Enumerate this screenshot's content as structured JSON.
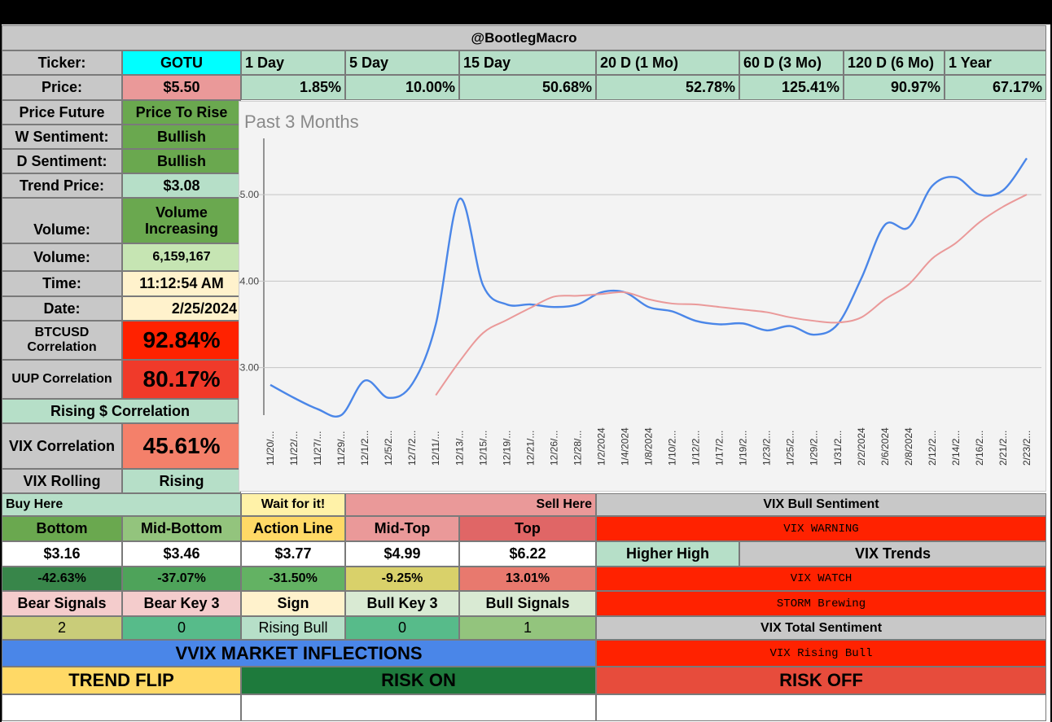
{
  "header": {
    "title": "@BootlegMacro"
  },
  "ticker": {
    "label": "Ticker:",
    "value": "GOTU"
  },
  "price": {
    "label": "Price:",
    "value": "$5.50"
  },
  "periods": [
    {
      "label": "1 Day",
      "change": "1.85%"
    },
    {
      "label": "5 Day",
      "change": "10.00%"
    },
    {
      "label": "15 Day",
      "change": "50.68%"
    },
    {
      "label": "20 D (1 Mo)",
      "change": "52.78%"
    },
    {
      "label": "60 D (3 Mo)",
      "change": "125.41%"
    },
    {
      "label": "120 D (6 Mo)",
      "change": "90.97%"
    },
    {
      "label": "1 Year",
      "change": "67.17%"
    }
  ],
  "metrics": {
    "price_future": {
      "label": "Price Future",
      "value": "Price To Rise"
    },
    "w_sentiment": {
      "label": "W Sentiment:",
      "value": "Bullish"
    },
    "d_sentiment": {
      "label": "D Sentiment:",
      "value": "Bullish"
    },
    "trend_price": {
      "label": "Trend Price:",
      "value": "$3.08"
    },
    "volume_trend": {
      "label": "Volume:",
      "value": "Volume Increasing"
    },
    "volume": {
      "label": "Volume:",
      "value": "6,159,167"
    },
    "time": {
      "label": "Time:",
      "value": "11:12:54 AM"
    },
    "date": {
      "label": "Date:",
      "value": "2/25/2024"
    },
    "btc_corr": {
      "label": "BTCUSD Correlation",
      "value": "92.84%"
    },
    "uup_corr": {
      "label": "UUP Correlation",
      "value": "80.17%"
    },
    "rising_corr": {
      "label": "Rising $ Correlation"
    },
    "vix_corr": {
      "label": "VIX Correlation",
      "value": "45.61%"
    },
    "vix_rolling": {
      "label": "VIX Rolling",
      "value": "Rising"
    }
  },
  "chart_data": {
    "type": "line",
    "title": "Past 3 Months",
    "y_ticks": [
      "$5.00",
      "$4.00",
      "$3.00"
    ],
    "ylim": [
      2.45,
      5.65
    ],
    "categories": [
      "11/20/...",
      "11/22/...",
      "11/27/...",
      "11/29/...",
      "12/1/2...",
      "12/5/2...",
      "12/7/2...",
      "12/11/...",
      "12/13/...",
      "12/15/...",
      "12/19/...",
      "12/21/...",
      "12/26/...",
      "12/28/...",
      "1/2/2024",
      "1/4/2024",
      "1/8/2024",
      "1/10/2...",
      "1/12/2...",
      "1/17/2...",
      "1/19/2...",
      "1/23/2...",
      "1/25/2...",
      "1/29/2...",
      "1/31/2...",
      "2/2/2024",
      "2/6/2024",
      "2/8/2024",
      "2/12/2...",
      "2/14/2...",
      "2/16/2...",
      "2/21/2...",
      "2/23/2..."
    ],
    "series": [
      {
        "color": "#4a86e8",
        "values": [
          2.8,
          2.65,
          2.52,
          2.45,
          2.85,
          2.65,
          2.81,
          3.5,
          4.95,
          3.95,
          3.73,
          3.73,
          3.7,
          3.73,
          3.87,
          3.87,
          3.7,
          3.65,
          3.54,
          3.5,
          3.51,
          3.43,
          3.48,
          3.38,
          3.5,
          4.03,
          4.65,
          4.62,
          5.1,
          5.2,
          5.0,
          5.05,
          5.42
        ]
      },
      {
        "color": "#ea9999",
        "values": [
          null,
          null,
          null,
          null,
          null,
          null,
          null,
          2.68,
          3.07,
          3.4,
          3.55,
          3.69,
          3.82,
          3.83,
          3.85,
          3.87,
          3.79,
          3.74,
          3.73,
          3.7,
          3.67,
          3.64,
          3.58,
          3.54,
          3.52,
          3.58,
          3.79,
          3.96,
          4.26,
          4.44,
          4.68,
          4.86,
          5.0
        ]
      }
    ]
  },
  "levels": {
    "buy_here": "Buy Here",
    "wait": "Wait for it!",
    "sell_here": "Sell Here",
    "headers": [
      "Bottom",
      "Mid-Bottom",
      "Action Line",
      "Mid-Top",
      "Top"
    ],
    "prices": [
      "$3.16",
      "$3.46",
      "$3.77",
      "$4.99",
      "$6.22"
    ],
    "pcts": [
      "-42.63%",
      "-37.07%",
      "-31.50%",
      "-9.25%",
      "13.01%"
    ]
  },
  "signals": {
    "headers": [
      "Bear Signals",
      "Bear Key 3",
      "Sign",
      "Bull Key 3",
      "Bull Signals"
    ],
    "values": [
      "2",
      "0",
      "Rising Bull",
      "0",
      "1"
    ]
  },
  "vix": {
    "bull_sentiment": "VIX Bull Sentiment",
    "warning": "VIX WARNING",
    "higher_high": "Higher High",
    "trends": "VIX Trends",
    "watch": "VIX WATCH",
    "storm": "STORM Brewing",
    "total": "VIX Total Sentiment",
    "rising_bull": "VIX Rising Bull"
  },
  "vvix": {
    "title": "VVIX MARKET INFLECTIONS",
    "trend_flip": "TREND FLIP",
    "risk_on": "RISK ON",
    "risk_off": "RISK OFF"
  },
  "colors": {
    "cyan": "#00ffff",
    "pink": "#ea9999",
    "mint": "#b6dfc8",
    "green": "#6aa84f",
    "red": "#ff2200",
    "salmon": "#f4806a",
    "gray": "#c8c8c8",
    "yellow": "#fff2cc",
    "blue": "#4a86e8",
    "gold": "#ffd966",
    "darkgreen": "#1e7a3c",
    "orange_red": "#e74c3c"
  }
}
